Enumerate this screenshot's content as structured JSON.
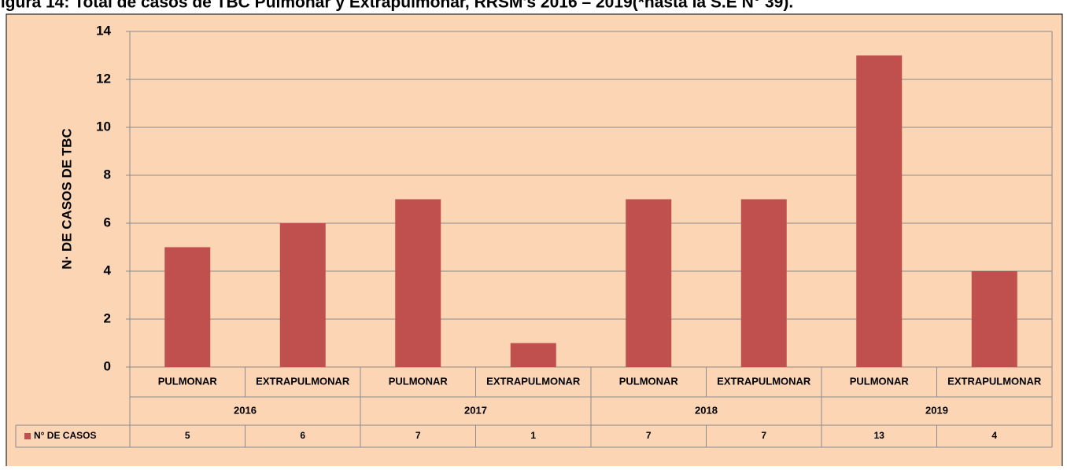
{
  "chart_data": {
    "type": "bar",
    "title": "Figura 14: Total de casos de TBC Pulmonar y Extrapulmonar, RRSM's 2016 – 2019(*hasta la S.E N° 39).",
    "y_label": "N· DE CASOS DE TBC",
    "categories": [
      "PULMONAR",
      "EXTRAPULMONAR",
      "PULMONAR",
      "EXTRAPULMONAR",
      "PULMONAR",
      "EXTRAPULMONAR",
      "PULMONAR",
      "EXTRAPULMONAR"
    ],
    "groups": [
      "2016",
      "2017",
      "2018",
      "2019"
    ],
    "series": [
      {
        "name": "N° DE CASOS",
        "color": "#c0504d",
        "values": [
          5,
          6,
          7,
          1,
          7,
          7,
          13,
          4
        ]
      }
    ],
    "ylim": [
      0,
      14
    ],
    "yticks": [
      0,
      2,
      4,
      6,
      8,
      10,
      12,
      14
    ],
    "grid": true,
    "legend": "bottom-left"
  }
}
